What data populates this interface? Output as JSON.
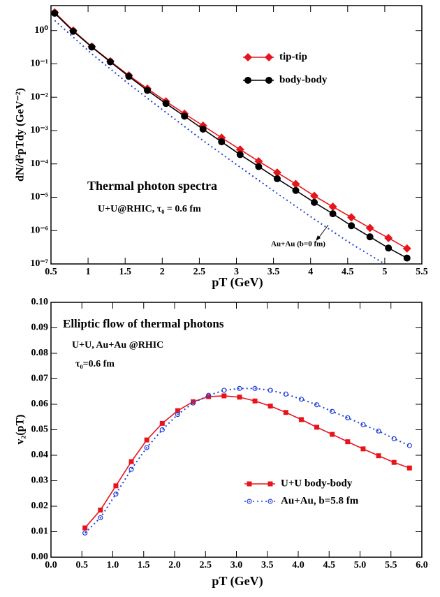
{
  "chart_data": [
    {
      "type": "line",
      "log_y": true,
      "xlabel": "pT (GeV)",
      "ylabel": "dN/d²pTdy (GeV⁻²)",
      "xlim": [
        0.5,
        5.5
      ],
      "xticks": [
        0.5,
        1,
        1.5,
        2,
        2.5,
        3,
        3.5,
        4,
        4.5,
        5,
        5.5
      ],
      "ylim": [
        1e-07,
        5.6
      ],
      "yticks": [
        {
          "value": 1e-07,
          "label": "10⁻⁷"
        },
        {
          "value": 1e-06,
          "label": "10⁻⁶"
        },
        {
          "value": 1e-05,
          "label": "10⁻⁵"
        },
        {
          "value": 0.0001,
          "label": "10⁻⁴"
        },
        {
          "value": 0.001,
          "label": "10⁻³"
        },
        {
          "value": 0.01,
          "label": "10⁻²"
        },
        {
          "value": 0.1,
          "label": "10⁻¹"
        },
        {
          "value": 1,
          "label": "10⁰"
        }
      ],
      "legend": "upper right",
      "annotations": [
        "Thermal photon spectra",
        "U+U@RHIC, τ₀ = 0.6 fm",
        "Au+Au (b=0 fm)"
      ],
      "series": [
        {
          "name": "tip-tip",
          "color": "#e8141c",
          "marker": "diamond",
          "linestyle": "solid",
          "x": [
            0.55,
            0.8,
            1.05,
            1.3,
            1.55,
            1.8,
            2.05,
            2.3,
            2.55,
            2.8,
            3.05,
            3.3,
            3.55,
            3.8,
            4.05,
            4.3,
            4.55,
            4.8,
            5.05,
            5.3
          ],
          "values": [
            3.5,
            1.0,
            0.33,
            0.12,
            0.045,
            0.018,
            0.0075,
            0.0032,
            0.0014,
            0.00061,
            0.00027,
            0.00012,
            5.5e-05,
            2.5e-05,
            1.1e-05,
            5.2e-06,
            2.5e-06,
            1.2e-06,
            6e-07,
            2.9e-07
          ]
        },
        {
          "name": "body-body",
          "color": "#000000",
          "marker": "circle",
          "linestyle": "solid",
          "x": [
            0.55,
            0.8,
            1.05,
            1.3,
            1.55,
            1.8,
            2.05,
            2.3,
            2.55,
            2.8,
            3.05,
            3.3,
            3.55,
            3.8,
            4.05,
            4.3,
            4.55,
            4.8,
            5.05,
            5.3
          ],
          "values": [
            3.3,
            0.95,
            0.32,
            0.115,
            0.042,
            0.016,
            0.0065,
            0.0027,
            0.0011,
            0.00046,
            0.00019,
            8.3e-05,
            3.6e-05,
            1.6e-05,
            7e-06,
            3.2e-06,
            1.4e-06,
            6.5e-07,
            3e-07,
            1.5e-07
          ]
        },
        {
          "color": "#1f3fdc",
          "linestyle": "dotted",
          "x": [
            0.55,
            1.05,
            1.55,
            2.05,
            2.55,
            3.05,
            3.55,
            4.05,
            4.55,
            5.0
          ],
          "values": [
            2.0,
            0.2,
            0.025,
            0.0035,
            0.0005,
            8e-05,
            1.3e-05,
            2.2e-06,
            4e-07,
            1e-07
          ]
        }
      ]
    },
    {
      "type": "line",
      "xlabel": "pT (GeV)",
      "ylabel": "v₂(pT)",
      "xlim": [
        0,
        6
      ],
      "xticks": [
        {
          "value": 0,
          "label": "0.0"
        },
        {
          "value": 0.5,
          "label": "0.5"
        },
        {
          "value": 1,
          "label": "1.0"
        },
        {
          "value": 1.5,
          "label": "1.5"
        },
        {
          "value": 2,
          "label": "2.0"
        },
        {
          "value": 2.5,
          "label": "2.5"
        },
        {
          "value": 3,
          "label": "3.0"
        },
        {
          "value": 3.5,
          "label": "3.5"
        },
        {
          "value": 4,
          "label": "4.0"
        },
        {
          "value": 4.5,
          "label": "4.5"
        },
        {
          "value": 5,
          "label": "5.0"
        },
        {
          "value": 5.5,
          "label": "5.5"
        },
        {
          "value": 6,
          "label": "6.0"
        }
      ],
      "ylim": [
        0,
        0.1
      ],
      "yticks": [
        {
          "value": 0,
          "label": "0.00"
        },
        {
          "value": 0.01,
          "label": "0.01"
        },
        {
          "value": 0.02,
          "label": "0.02"
        },
        {
          "value": 0.03,
          "label": "0.03"
        },
        {
          "value": 0.04,
          "label": "0.04"
        },
        {
          "value": 0.05,
          "label": "0.05"
        },
        {
          "value": 0.06,
          "label": "0.06"
        },
        {
          "value": 0.07,
          "label": "0.07"
        },
        {
          "value": 0.08,
          "label": "0.08"
        },
        {
          "value": 0.09,
          "label": "0.09"
        },
        {
          "value": 0.1,
          "label": "0.10"
        }
      ],
      "legend": "lower right",
      "annotations": [
        "Elliptic flow of thermal photons",
        "U+U, Au+Au @RHIC",
        "τ₀=0.6 fm"
      ],
      "series": [
        {
          "name": "U+U body-body",
          "color": "#e8141c",
          "marker": "square",
          "linestyle": "solid",
          "x": [
            0.55,
            0.8,
            1.05,
            1.3,
            1.55,
            1.8,
            2.05,
            2.3,
            2.55,
            2.8,
            3.05,
            3.3,
            3.55,
            3.8,
            4.05,
            4.3,
            4.55,
            4.8,
            5.05,
            5.3,
            5.55,
            5.8
          ],
          "values": [
            0.0115,
            0.0185,
            0.028,
            0.0375,
            0.046,
            0.0525,
            0.0575,
            0.061,
            0.063,
            0.0633,
            0.0628,
            0.0613,
            0.0593,
            0.0568,
            0.054,
            0.051,
            0.0482,
            0.0453,
            0.0425,
            0.0398,
            0.0372,
            0.035
          ]
        },
        {
          "name": "Au+Au, b=5.8 fm",
          "color": "#1f3fdc",
          "marker": "open-circle",
          "linestyle": "dotted",
          "x": [
            0.55,
            0.8,
            1.05,
            1.3,
            1.55,
            1.8,
            2.05,
            2.3,
            2.55,
            2.8,
            3.05,
            3.3,
            3.55,
            3.8,
            4.05,
            4.3,
            4.55,
            4.8,
            5.05,
            5.3,
            5.55,
            5.8
          ],
          "values": [
            0.0095,
            0.0155,
            0.0248,
            0.0345,
            0.043,
            0.05,
            0.056,
            0.0605,
            0.0635,
            0.0655,
            0.0662,
            0.0662,
            0.0655,
            0.064,
            0.062,
            0.0598,
            0.0572,
            0.0547,
            0.052,
            0.0495,
            0.0465,
            0.0438
          ]
        }
      ]
    }
  ]
}
